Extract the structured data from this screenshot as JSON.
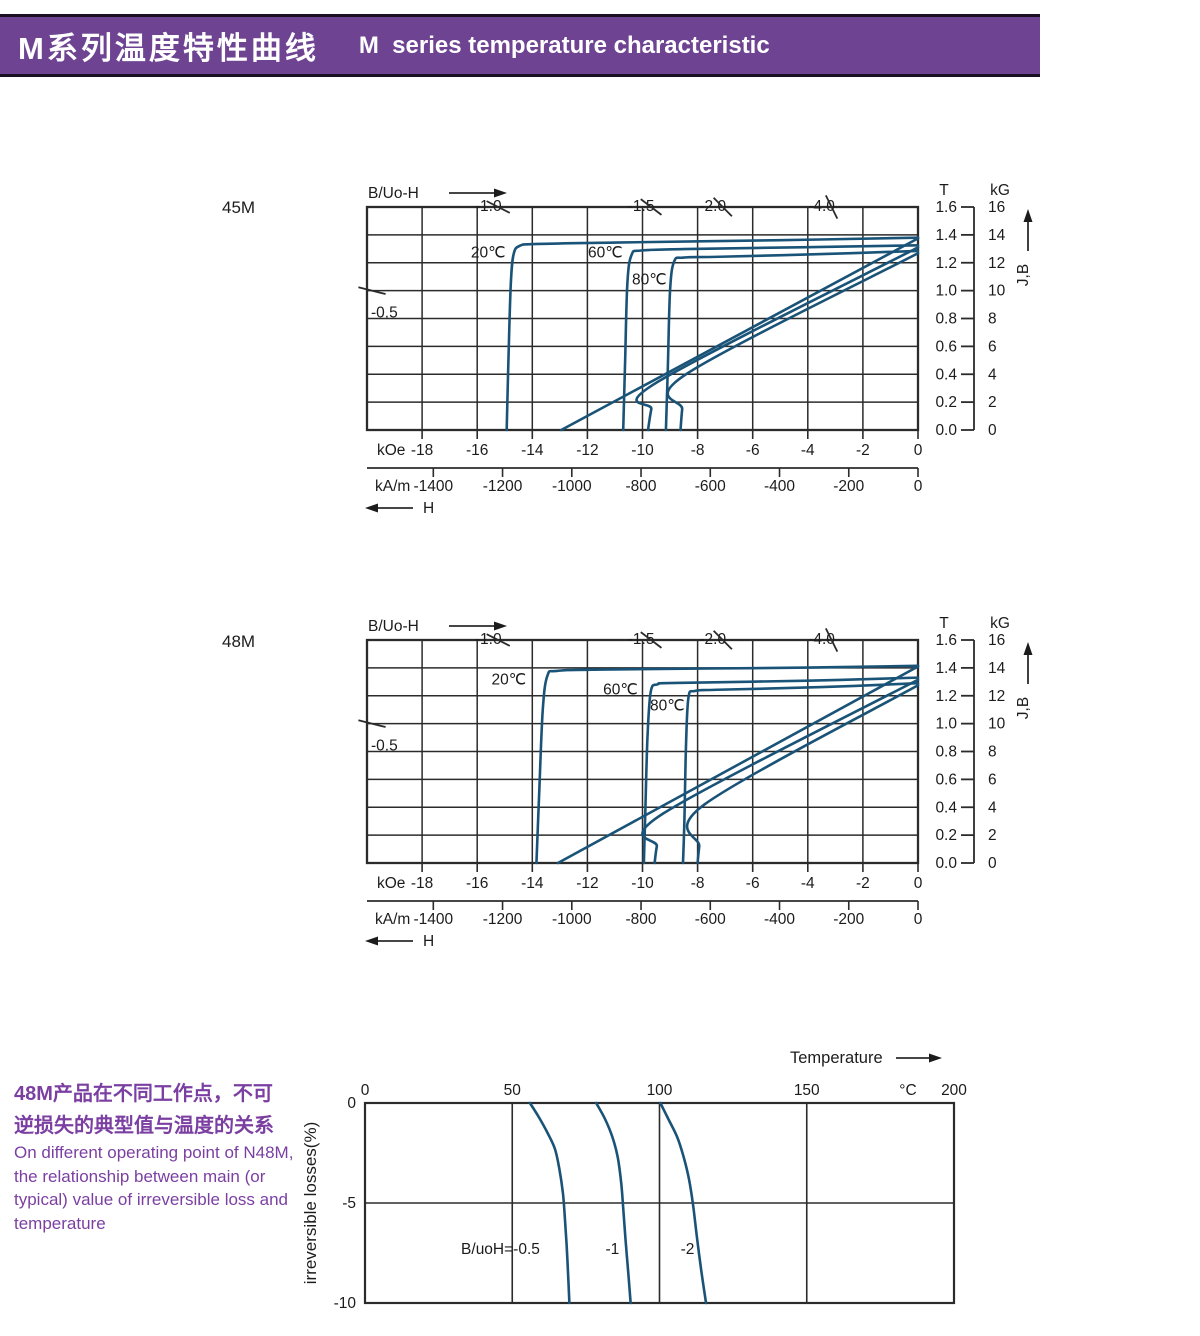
{
  "header": {
    "title_zh": "M系列温度特性曲线",
    "title_en": "M  series temperature characteristic",
    "bar_color": "#6e4492"
  },
  "colors": {
    "curve_blue": "#1a5378",
    "grid": "#2b2b2b",
    "axis_text": "#1c1c1c",
    "purple_text": "#7b3fa2"
  },
  "chart_data": [
    {
      "type": "line",
      "grade_label": "45M",
      "top_axis_label": "B/Uo-H",
      "x_axis": {
        "label_kOe": "kOe",
        "ticks_kOe": [
          -18,
          -16,
          -14,
          -12,
          -10,
          -8,
          -6,
          -4,
          -2,
          0
        ],
        "label_kAm": "kA/m",
        "ticks_kAm": [
          -1400,
          -1200,
          -1000,
          -800,
          -600,
          -400,
          -200,
          0
        ],
        "arrow_label": "H",
        "range_kOe": [
          -20,
          0
        ]
      },
      "y_axis": {
        "header_T": "T",
        "ticks_T": [
          "1.6",
          "1.4",
          "1.2",
          "1.0",
          "0.8",
          "0.6",
          "0.4",
          "0.2",
          "0.0"
        ],
        "header_kG": "kG",
        "ticks_kG": [
          "16",
          "14",
          "12",
          "10",
          "8",
          "6",
          "4",
          "2",
          "0"
        ],
        "arrow_label": "J,B",
        "range_T": [
          0,
          1.6
        ]
      },
      "load_lines": {
        "top": [
          {
            "label": "-1.0",
            "H": -15.6,
            "slope": 1.0
          },
          {
            "label": "-1.5",
            "H": -10.05,
            "slope": 1.5
          },
          {
            "label": "-2.0",
            "H": -7.45,
            "slope": 2.0
          },
          {
            "label": "-4.0",
            "H": -3.5,
            "slope": 4.0
          }
        ],
        "left": {
          "label": "-0.5",
          "slope": 0.5,
          "B_at_edge": 1.0
        }
      },
      "series": [
        {
          "name": "20℃",
          "label_at": [
            -15.6,
            1.275
          ],
          "J": [
            [
              0,
              1.38
            ],
            [
              -5,
              1.362
            ],
            [
              -11,
              1.345
            ],
            [
              -13.8,
              1.335
            ],
            [
              -14.45,
              1.322
            ],
            [
              -14.68,
              1.26
            ],
            [
              -14.78,
              1.05
            ],
            [
              -14.86,
              0.55
            ],
            [
              -14.93,
              0
            ]
          ],
          "B": [
            [
              0,
              1.375
            ],
            [
              -12.95,
              0
            ]
          ]
        },
        {
          "name": "60℃",
          "label_at": [
            -11.35,
            1.275
          ],
          "J": [
            [
              0,
              1.325
            ],
            [
              -4,
              1.312
            ],
            [
              -8.5,
              1.298
            ],
            [
              -10.05,
              1.288
            ],
            [
              -10.4,
              1.255
            ],
            [
              -10.55,
              1.05
            ],
            [
              -10.63,
              0.5
            ],
            [
              -10.7,
              0
            ]
          ],
          "B": [
            [
              0,
              1.31
            ],
            [
              -9.45,
              0.345
            ],
            [
              -9.68,
              0.15
            ],
            [
              -9.8,
              0
            ]
          ]
        },
        {
          "name": "80℃",
          "label_at": [
            -9.75,
            1.08
          ],
          "J": [
            [
              0,
              1.285
            ],
            [
              -3.5,
              1.262
            ],
            [
              -7.2,
              1.243
            ],
            [
              -8.5,
              1.237
            ],
            [
              -8.85,
              1.21
            ],
            [
              -9.0,
              1.0
            ],
            [
              -9.08,
              0.45
            ],
            [
              -9.15,
              0
            ]
          ],
          "B": [
            [
              0,
              1.268
            ],
            [
              -8.42,
              0.4
            ],
            [
              -8.56,
              0.15
            ],
            [
              -8.62,
              0
            ]
          ]
        }
      ]
    },
    {
      "type": "line",
      "grade_label": "48M",
      "top_axis_label": "B/Uo-H",
      "x_axis": {
        "label_kOe": "kOe",
        "ticks_kOe": [
          -18,
          -16,
          -14,
          -12,
          -10,
          -8,
          -6,
          -4,
          -2,
          0
        ],
        "label_kAm": "kA/m",
        "ticks_kAm": [
          -1400,
          -1200,
          -1000,
          -800,
          -600,
          -400,
          -200,
          0
        ],
        "arrow_label": "H",
        "range_kOe": [
          -20,
          0
        ]
      },
      "y_axis": {
        "header_T": "T",
        "ticks_T": [
          "1.6",
          "1.4",
          "1.2",
          "1.0",
          "0.8",
          "0.6",
          "0.4",
          "0.2",
          "0.0"
        ],
        "header_kG": "kG",
        "ticks_kG": [
          "16",
          "14",
          "12",
          "10",
          "8",
          "6",
          "4",
          "2",
          "0"
        ],
        "arrow_label": "J,B",
        "range_T": [
          0,
          1.6
        ]
      },
      "load_lines": {
        "top": [
          {
            "label": "-1.0",
            "H": -15.6,
            "slope": 1.0
          },
          {
            "label": "-1.5",
            "H": -10.05,
            "slope": 1.5
          },
          {
            "label": "-2.0",
            "H": -7.45,
            "slope": 2.0
          },
          {
            "label": "-4.0",
            "H": -3.5,
            "slope": 4.0
          }
        ],
        "left": {
          "label": "-0.5",
          "slope": 0.5,
          "B_at_edge": 1.0
        }
      },
      "series": [
        {
          "name": "20℃",
          "label_at": [
            -14.85,
            1.315
          ],
          "J": [
            [
              0,
              1.415
            ],
            [
              -4,
              1.402
            ],
            [
              -11.5,
              1.388
            ],
            [
              -13.1,
              1.378
            ],
            [
              -13.45,
              1.345
            ],
            [
              -13.62,
              1.1
            ],
            [
              -13.75,
              0.5
            ],
            [
              -13.85,
              0
            ]
          ],
          "B": [
            [
              0,
              1.41
            ],
            [
              -13.07,
              0
            ]
          ]
        },
        {
          "name": "60℃",
          "label_at": [
            -10.8,
            1.245
          ],
          "J": [
            [
              0,
              1.33
            ],
            [
              -4,
              1.308
            ],
            [
              -8.8,
              1.292
            ],
            [
              -9.45,
              1.282
            ],
            [
              -9.7,
              1.23
            ],
            [
              -9.82,
              0.9
            ],
            [
              -9.9,
              0.35
            ],
            [
              -9.95,
              0
            ]
          ],
          "B": [
            [
              0,
              1.315
            ],
            [
              -9.25,
              0.355
            ],
            [
              -9.48,
              0.12
            ],
            [
              -9.56,
              0
            ]
          ]
        },
        {
          "name": "80℃",
          "label_at": [
            -9.1,
            1.13
          ],
          "J": [
            [
              0,
              1.29
            ],
            [
              -3.5,
              1.262
            ],
            [
              -7.3,
              1.243
            ],
            [
              -8.1,
              1.234
            ],
            [
              -8.33,
              1.19
            ],
            [
              -8.42,
              0.85
            ],
            [
              -8.48,
              0.3
            ],
            [
              -8.53,
              0
            ]
          ],
          "B": [
            [
              0,
              1.275
            ],
            [
              -7.75,
              0.42
            ],
            [
              -7.94,
              0.12
            ],
            [
              -8.0,
              0
            ]
          ]
        }
      ]
    },
    {
      "type": "line",
      "x_axis": {
        "title": "Temperature",
        "unit": "°C",
        "ticks": [
          0,
          50,
          100,
          150,
          200
        ],
        "range": [
          0,
          200
        ]
      },
      "y_axis": {
        "title": "irreversible  losses(%)",
        "ticks": [
          "0",
          "-5",
          "-10"
        ],
        "range": [
          -10,
          0
        ]
      },
      "series": [
        {
          "label": "B/uoH=-0.5",
          "label_at": [
            46,
            -7.3
          ],
          "points": [
            [
              56,
              0
            ],
            [
              59,
              -0.7
            ],
            [
              62,
              -1.5
            ],
            [
              64.5,
              -2.3
            ],
            [
              66,
              -3.3
            ],
            [
              67.2,
              -4.5
            ],
            [
              67.8,
              -5.6
            ],
            [
              68.5,
              -7.2
            ],
            [
              69.1,
              -9.0
            ],
            [
              69.4,
              -10
            ]
          ]
        },
        {
          "label": "-1",
          "label_at": [
            84,
            -7.3
          ],
          "points": [
            [
              78.5,
              0
            ],
            [
              81.5,
              -0.8
            ],
            [
              84,
              -1.7
            ],
            [
              85.8,
              -2.7
            ],
            [
              87,
              -4.0
            ],
            [
              87.7,
              -5.3
            ],
            [
              88.5,
              -6.9
            ],
            [
              89.4,
              -8.5
            ],
            [
              90.2,
              -10
            ]
          ]
        },
        {
          "label": "-2",
          "label_at": [
            109.5,
            -7.3
          ],
          "points": [
            [
              100.3,
              0
            ],
            [
              103,
              -0.8
            ],
            [
              106,
              -1.7
            ],
            [
              108.2,
              -2.7
            ],
            [
              110,
              -3.8
            ],
            [
              111.4,
              -5.1
            ],
            [
              112.7,
              -6.7
            ],
            [
              114.2,
              -8.4
            ],
            [
              115.8,
              -10
            ]
          ]
        }
      ]
    }
  ],
  "side_note": {
    "zh_lines": [
      "48M产品在不同工作点，不可",
      "逆损失的典型值与温度的关系"
    ],
    "en_lines": [
      "On different operating point of N48M,",
      "the relationship between main (or",
      "typical) value of irreversible loss and",
      "temperature"
    ]
  }
}
